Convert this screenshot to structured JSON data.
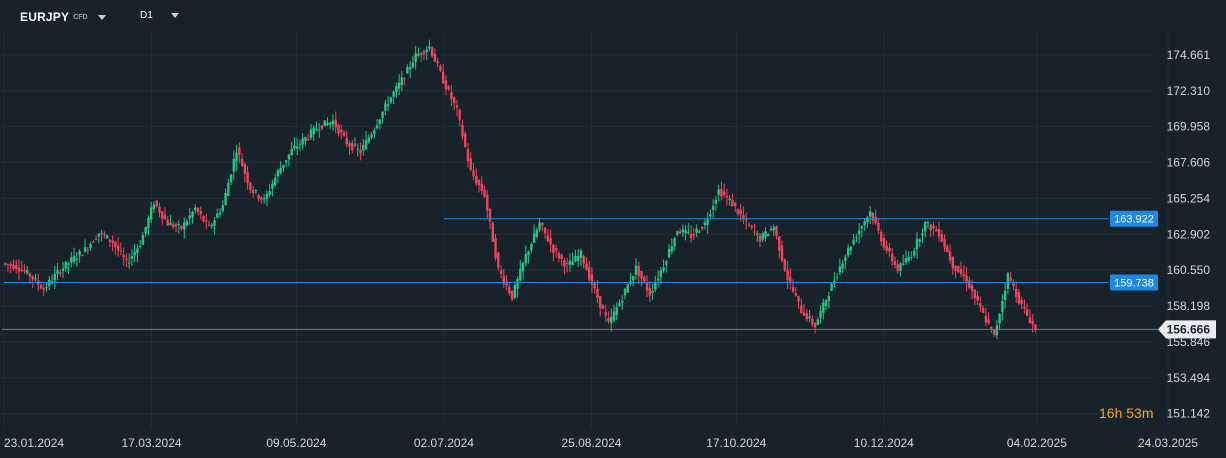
{
  "header": {
    "symbol": "EURJPY",
    "symbol_tag": "CFD",
    "timeframe": "D1",
    "symbol_caret_icon": "chevron-down-icon",
    "timeframe_caret_icon": "chevron-down-icon"
  },
  "countdown": {
    "hours": "16",
    "hours_unit": "h",
    "minutes": "53",
    "minutes_unit": "m"
  },
  "colors": {
    "background": "#18222b",
    "grid": "#222e38",
    "up": "#26c485",
    "down": "#f0445a",
    "level_line": "#1e88e5",
    "level_label_bg": "#1e88e5",
    "price_line": "#6b7a88",
    "price_label_bg": "#e9edf1",
    "axis_text": "#d0d6dc",
    "countdown": "#f5a623"
  },
  "chart_data": {
    "type": "candlestick",
    "title": "",
    "xlabel": "",
    "ylabel": "",
    "ylim": [
      150.4,
      175.9
    ],
    "y_ticks": [
      "174.661",
      "172.310",
      "169.958",
      "167.606",
      "165.254",
      "162.902",
      "160.550",
      "158.198",
      "155.846",
      "153.494",
      "151.142"
    ],
    "x_ticks": [
      "23.01.2024",
      "17.03.2024",
      "09.05.2024",
      "02.07.2024",
      "25.08.2024",
      "17.10.2024",
      "10.12.2024",
      "04.02.2025",
      "24.03.2025"
    ],
    "x_range": [
      "2024-01-23",
      "2025-03-24"
    ],
    "levels": [
      {
        "label": "163.922",
        "value": 163.922,
        "start": "2024-07-02"
      },
      {
        "label": "159.738",
        "value": 159.738,
        "start": "2024-01-23"
      }
    ],
    "current_price": {
      "label": "156.666",
      "value": 156.666
    },
    "grid": true,
    "candles": [
      [
        "2024-01-23",
        161.0,
        160.8
      ],
      [
        "2024-01-30",
        160.8,
        160.2
      ],
      [
        "2024-02-06",
        160.2,
        159.3
      ],
      [
        "2024-02-13",
        159.3,
        160.4
      ],
      [
        "2024-02-20",
        160.4,
        161.2
      ],
      [
        "2024-02-27",
        161.2,
        161.9
      ],
      [
        "2024-03-05",
        161.9,
        163.0
      ],
      [
        "2024-03-12",
        163.0,
        162.4
      ],
      [
        "2024-03-19",
        162.4,
        161.0
      ],
      [
        "2024-03-26",
        161.0,
        162.3
      ],
      [
        "2024-04-02",
        162.3,
        165.0
      ],
      [
        "2024-04-09",
        165.0,
        163.6
      ],
      [
        "2024-04-16",
        163.6,
        163.3
      ],
      [
        "2024-04-23",
        163.3,
        164.6
      ],
      [
        "2024-04-30",
        164.6,
        163.3
      ],
      [
        "2024-05-07",
        163.3,
        164.8
      ],
      [
        "2024-05-14",
        164.8,
        168.5
      ],
      [
        "2024-05-21",
        168.5,
        165.9
      ],
      [
        "2024-05-28",
        165.9,
        165.1
      ],
      [
        "2024-06-04",
        165.1,
        167.0
      ],
      [
        "2024-06-11",
        167.0,
        168.4
      ],
      [
        "2024-06-18",
        168.4,
        169.2
      ],
      [
        "2024-06-25",
        169.2,
        170.0
      ],
      [
        "2024-07-02",
        170.0,
        170.3
      ],
      [
        "2024-07-09",
        170.3,
        168.9
      ],
      [
        "2024-07-16",
        168.9,
        168.3
      ],
      [
        "2024-07-23",
        168.3,
        169.9
      ],
      [
        "2024-07-30",
        169.9,
        171.6
      ],
      [
        "2024-08-06",
        171.6,
        173.0
      ],
      [
        "2024-08-13",
        173.0,
        174.6
      ],
      [
        "2024-08-20",
        174.6,
        175.2
      ],
      [
        "2024-08-27",
        175.2,
        173.0
      ],
      [
        "2024-09-03",
        173.0,
        171.0
      ],
      [
        "2024-09-10",
        171.0,
        167.0
      ],
      [
        "2024-09-17",
        167.0,
        165.5
      ],
      [
        "2024-09-24",
        165.5,
        160.6
      ],
      [
        "2024-10-01",
        160.6,
        158.8
      ],
      [
        "2024-10-08",
        158.8,
        161.5
      ],
      [
        "2024-10-15",
        161.5,
        163.6
      ],
      [
        "2024-10-22",
        163.6,
        161.9
      ],
      [
        "2024-10-29",
        161.9,
        160.8
      ],
      [
        "2024-11-05",
        160.8,
        161.6
      ],
      [
        "2024-11-12",
        161.6,
        159.2
      ],
      [
        "2024-11-19",
        159.2,
        157.0
      ],
      [
        "2024-11-26",
        157.0,
        158.8
      ],
      [
        "2024-12-03",
        158.8,
        160.7
      ],
      [
        "2024-12-10",
        160.7,
        159.0
      ],
      [
        "2024-12-17",
        159.0,
        160.9
      ],
      [
        "2024-12-24",
        160.9,
        163.2
      ],
      [
        "2024-12-31",
        163.2,
        162.8
      ],
      [
        "2025-01-07",
        162.8,
        163.6
      ],
      [
        "2025-01-14",
        163.6,
        165.8
      ],
      [
        "2025-01-21",
        165.8,
        164.9
      ],
      [
        "2025-01-28",
        164.9,
        163.6
      ],
      [
        "2025-02-04",
        163.6,
        162.6
      ],
      [
        "2025-02-11",
        162.6,
        163.4
      ],
      [
        "2025-02-18",
        163.4,
        160.0
      ],
      [
        "2025-02-25",
        160.0,
        157.9
      ],
      [
        "2025-03-04",
        157.9,
        156.9
      ],
      [
        "2025-03-11",
        156.9,
        159.1
      ],
      [
        "2025-03-18",
        159.1,
        161.2
      ],
      [
        "2025-03-25",
        161.2,
        162.9
      ],
      [
        "2025-04-01",
        162.9,
        164.4
      ],
      [
        "2025-04-08",
        164.4,
        162.2
      ],
      [
        "2025-04-15",
        162.2,
        160.6
      ],
      [
        "2025-04-22",
        160.6,
        161.6
      ],
      [
        "2025-04-29",
        161.6,
        163.6
      ],
      [
        "2025-05-06",
        163.6,
        163.0
      ],
      [
        "2025-05-13",
        163.0,
        160.9
      ],
      [
        "2025-05-20",
        160.9,
        159.9
      ],
      [
        "2025-05-27",
        159.9,
        158.0
      ],
      [
        "2025-06-03",
        158.0,
        156.2
      ],
      [
        "2025-06-10",
        156.2,
        160.2
      ],
      [
        "2025-06-17",
        160.2,
        158.2
      ],
      [
        "2025-06-24",
        158.2,
        156.666
      ]
    ]
  }
}
